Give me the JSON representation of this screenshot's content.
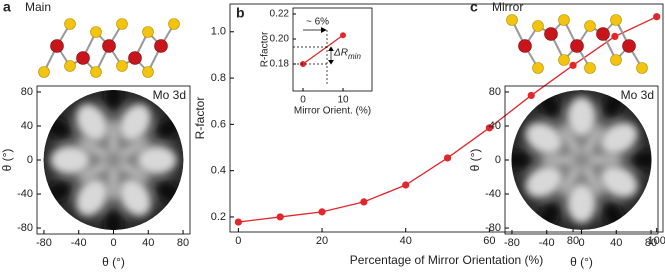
{
  "chart_data": [
    {
      "type": "image",
      "panel_label": "a",
      "title": "Main",
      "annotation": "Mo 3d",
      "xlabel": "θ (°)",
      "ylabel": "θ (°)",
      "xlim": [
        -88,
        88
      ],
      "ylim": [
        -87,
        87
      ],
      "xticks": [
        -80,
        -40,
        0,
        40,
        80
      ],
      "yticks": [
        -80,
        -40,
        0,
        40,
        80
      ]
    },
    {
      "type": "line",
      "panel_label": "b",
      "xlabel": "Percentage of Mirror Orientation (%)",
      "ylabel": "R-factor",
      "x": [
        0,
        10,
        20,
        30,
        40,
        50,
        60,
        70,
        80,
        90,
        100
      ],
      "series": [
        {
          "color": "#e3262b",
          "values": [
            0.178,
            0.2,
            0.222,
            0.265,
            0.338,
            0.455,
            0.585,
            0.725,
            0.855,
            0.98,
            1.065
          ]
        }
      ],
      "xlim": [
        -2,
        101.5
      ],
      "ylim": [
        0.135,
        1.12
      ],
      "xticks": [
        0,
        20,
        40,
        60,
        80,
        100
      ],
      "yticks": [
        0.2,
        0.4,
        0.6,
        0.8,
        {
          "value": 1,
          "label": "1.0"
        }
      ]
    },
    {
      "type": "line",
      "xlabel": "Mirror Orient. (%)",
      "ylabel": "R-factor",
      "shift_label": "~ 6%",
      "delta_label": "ΔR",
      "delta_subscript": "min",
      "x": [
        0,
        10
      ],
      "series": [
        {
          "color": "#e3262b",
          "values": [
            0.18,
            0.203
          ]
        }
      ],
      "xlim": [
        -2.5,
        17.25
      ],
      "ylim": [
        0.1584,
        0.2248
      ],
      "xticks": [
        0,
        10
      ],
      "yticks": [
        0.18,
        {
          "value": 0.2,
          "label": "0.20"
        },
        0.22
      ]
    },
    {
      "type": "image",
      "panel_label": "c",
      "title": "Mirror",
      "annotation": "Mo 3d",
      "xlabel": "θ (°)",
      "ylabel": "θ (°)",
      "xlim": [
        -88,
        88
      ],
      "ylim": [
        -87,
        87
      ],
      "xticks": [
        -80,
        -40,
        0,
        40,
        80
      ],
      "yticks": [
        -80,
        -40,
        0,
        40,
        80
      ]
    }
  ]
}
